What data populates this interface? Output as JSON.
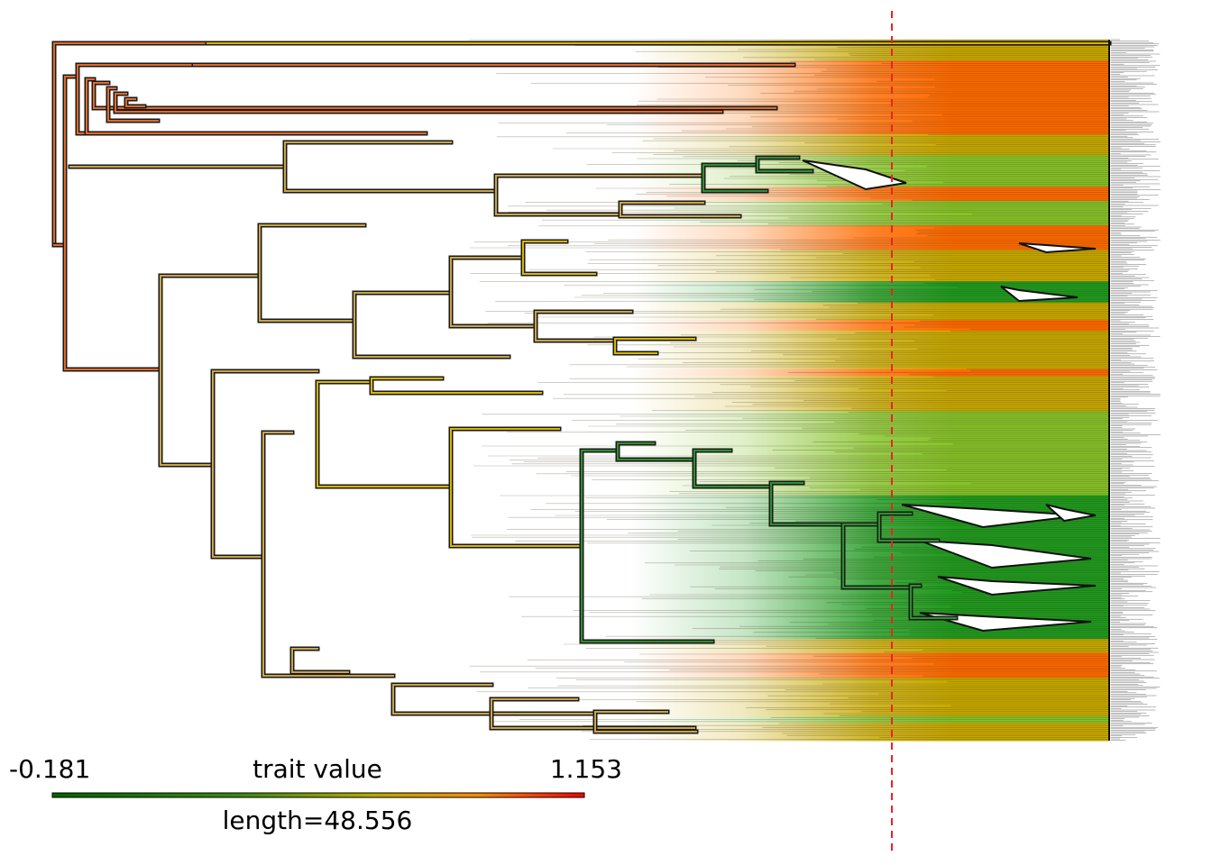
{
  "legend": {
    "min_label": "-0.181",
    "title": "trait value",
    "max_label": "1.153",
    "length_label": "length=48.556",
    "gradient_colors": [
      "#006400",
      "#3a8a10",
      "#b8a800",
      "#ff8c00",
      "#ff0000"
    ]
  },
  "palette": {
    "orange": "#ff6a00",
    "olive": "#c7a800",
    "yellowgreen": "#86c22a",
    "green": "#1f9a1f",
    "trunk": "#c8a44a",
    "reference_line": "#ee2222"
  },
  "tip_color_bands": [
    {
      "color": "olive",
      "from": 0.0,
      "to": 0.03
    },
    {
      "color": "orange",
      "from": 0.03,
      "to": 0.135
    },
    {
      "color": "olive",
      "from": 0.135,
      "to": 0.165
    },
    {
      "color": "yellowgreen",
      "from": 0.165,
      "to": 0.21
    },
    {
      "color": "orange",
      "from": 0.21,
      "to": 0.23
    },
    {
      "color": "yellowgreen",
      "from": 0.23,
      "to": 0.265
    },
    {
      "color": "orange",
      "from": 0.265,
      "to": 0.3
    },
    {
      "color": "olive",
      "from": 0.3,
      "to": 0.345
    },
    {
      "color": "green",
      "from": 0.345,
      "to": 0.375
    },
    {
      "color": "olive",
      "from": 0.375,
      "to": 0.4
    },
    {
      "color": "orange",
      "from": 0.4,
      "to": 0.415
    },
    {
      "color": "olive",
      "from": 0.415,
      "to": 0.47
    },
    {
      "color": "orange",
      "from": 0.47,
      "to": 0.48
    },
    {
      "color": "olive",
      "from": 0.48,
      "to": 0.53
    },
    {
      "color": "yellowgreen",
      "from": 0.53,
      "to": 0.65
    },
    {
      "color": "green",
      "from": 0.65,
      "to": 0.855
    },
    {
      "color": "olive",
      "from": 0.855,
      "to": 0.875
    },
    {
      "color": "orange",
      "from": 0.875,
      "to": 0.91
    },
    {
      "color": "olive",
      "from": 0.91,
      "to": 0.965
    },
    {
      "color": "yellowgreen",
      "from": 0.965,
      "to": 0.975
    },
    {
      "color": "olive",
      "from": 0.975,
      "to": 1.0
    }
  ]
}
